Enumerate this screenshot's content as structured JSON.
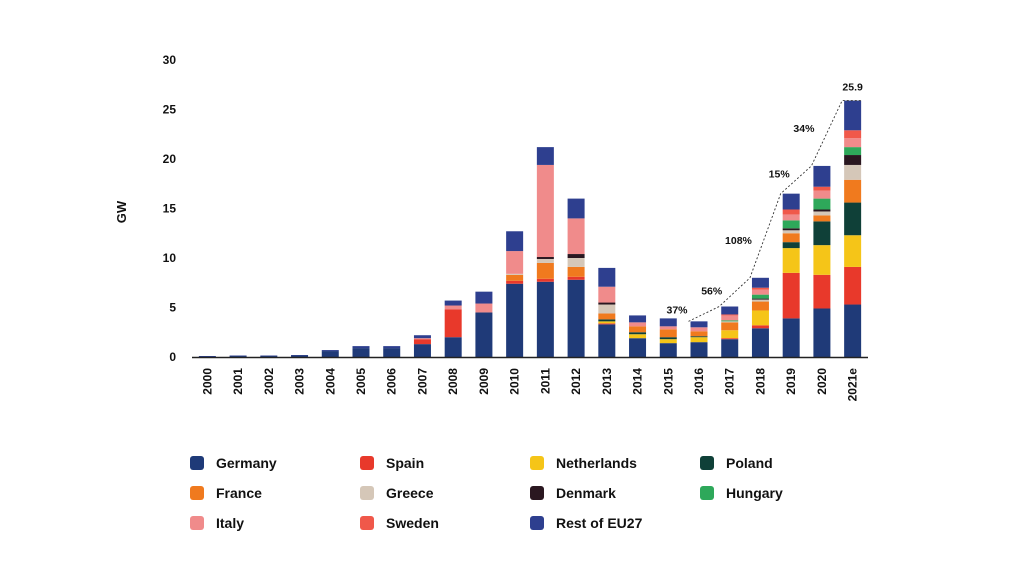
{
  "chart_data": {
    "type": "bar",
    "stacked": true,
    "ylabel": "GW",
    "ylim": [
      0,
      30
    ],
    "yticks": [
      "0",
      "5",
      "10",
      "15",
      "20",
      "25",
      "30"
    ],
    "categories": [
      "2000",
      "2001",
      "2002",
      "2003",
      "2004",
      "2005",
      "2006",
      "2007",
      "2008",
      "2009",
      "2010",
      "2011",
      "2012",
      "2013",
      "2014",
      "2015",
      "2016",
      "2017",
      "2018",
      "2019",
      "2020",
      "2021e"
    ],
    "series": [
      {
        "name": "Germany",
        "color": "#1f3a78",
        "values": [
          0.05,
          0.1,
          0.1,
          0.15,
          0.6,
          0.9,
          0.9,
          1.3,
          2.0,
          4.5,
          7.4,
          7.6,
          7.8,
          3.3,
          1.9,
          1.4,
          1.5,
          1.8,
          2.9,
          3.9,
          4.9,
          5.3
        ]
      },
      {
        "name": "Spain",
        "color": "#e8392b",
        "values": [
          0,
          0,
          0,
          0,
          0,
          0,
          0,
          0.5,
          2.8,
          0,
          0.3,
          0.3,
          0.3,
          0.1,
          0,
          0,
          0,
          0.1,
          0.3,
          4.6,
          3.4,
          3.8
        ]
      },
      {
        "name": "Netherlands",
        "color": "#f5c518",
        "values": [
          0,
          0,
          0,
          0,
          0,
          0,
          0,
          0,
          0,
          0,
          0,
          0,
          0,
          0.2,
          0.4,
          0.4,
          0.5,
          0.8,
          1.5,
          2.5,
          3.0,
          3.2
        ]
      },
      {
        "name": "Poland",
        "color": "#0f4038",
        "values": [
          0,
          0,
          0,
          0,
          0,
          0,
          0,
          0,
          0,
          0,
          0,
          0,
          0,
          0.2,
          0.2,
          0.2,
          0.1,
          0,
          0,
          0.6,
          2.4,
          3.3
        ]
      },
      {
        "name": "France",
        "color": "#f07a1e",
        "values": [
          0,
          0,
          0,
          0,
          0,
          0,
          0,
          0,
          0,
          0,
          0.6,
          1.6,
          1.0,
          0.6,
          0.6,
          0.8,
          0.5,
          0.8,
          0.9,
          0.9,
          0.6,
          2.3
        ]
      },
      {
        "name": "Greece",
        "color": "#d5c7b8",
        "values": [
          0,
          0,
          0,
          0,
          0,
          0,
          0,
          0,
          0,
          0,
          0.1,
          0.4,
          0.9,
          0.9,
          0,
          0,
          0,
          0.1,
          0.2,
          0.3,
          0.4,
          1.5
        ]
      },
      {
        "name": "Denmark",
        "color": "#2a1720",
        "values": [
          0,
          0,
          0,
          0,
          0,
          0,
          0,
          0,
          0,
          0,
          0,
          0.2,
          0.4,
          0.2,
          0,
          0,
          0,
          0,
          0.1,
          0.2,
          0.2,
          1.0
        ]
      },
      {
        "name": "Hungary",
        "color": "#2ea85a",
        "values": [
          0,
          0,
          0,
          0,
          0,
          0,
          0,
          0,
          0,
          0,
          0,
          0,
          0,
          0,
          0,
          0,
          0,
          0.1,
          0.4,
          0.8,
          1.1,
          0.8
        ]
      },
      {
        "name": "Italy",
        "color": "#f08b8b",
        "values": [
          0,
          0,
          0,
          0,
          0,
          0,
          0,
          0.1,
          0.4,
          0.9,
          2.3,
          9.3,
          3.6,
          1.6,
          0.4,
          0.3,
          0.4,
          0.5,
          0.5,
          0.6,
          0.8,
          0.9
        ]
      },
      {
        "name": "Sweden",
        "color": "#f0584a",
        "values": [
          0,
          0,
          0,
          0,
          0,
          0,
          0,
          0,
          0,
          0,
          0,
          0,
          0,
          0,
          0,
          0,
          0,
          0.1,
          0.2,
          0.5,
          0.4,
          0.8
        ]
      },
      {
        "name": "Rest of EU27",
        "color": "#2e3f8f",
        "values": [
          0.05,
          0.05,
          0.05,
          0.05,
          0.1,
          0.2,
          0.2,
          0.3,
          0.5,
          1.2,
          2.0,
          1.8,
          2.0,
          1.9,
          0.7,
          0.8,
          0.6,
          0.8,
          1.0,
          1.6,
          2.1,
          3.0
        ]
      }
    ],
    "annotations": [
      {
        "text": "37%",
        "category": "2016"
      },
      {
        "text": "56%",
        "category": "2017"
      },
      {
        "text": "108%",
        "category": "2018"
      },
      {
        "text": "15%",
        "category": "2019"
      },
      {
        "text": "34%",
        "category": "2020"
      },
      {
        "text": "25.9",
        "category": "2021e"
      }
    ],
    "legend_position": "bottom",
    "legend_columns": [
      [
        "Germany",
        "France",
        "Italy"
      ],
      [
        "Spain",
        "Greece",
        "Sweden"
      ],
      [
        "Netherlands",
        "Denmark",
        "Rest of EU27"
      ],
      [
        "Poland",
        "Hungary"
      ]
    ]
  }
}
